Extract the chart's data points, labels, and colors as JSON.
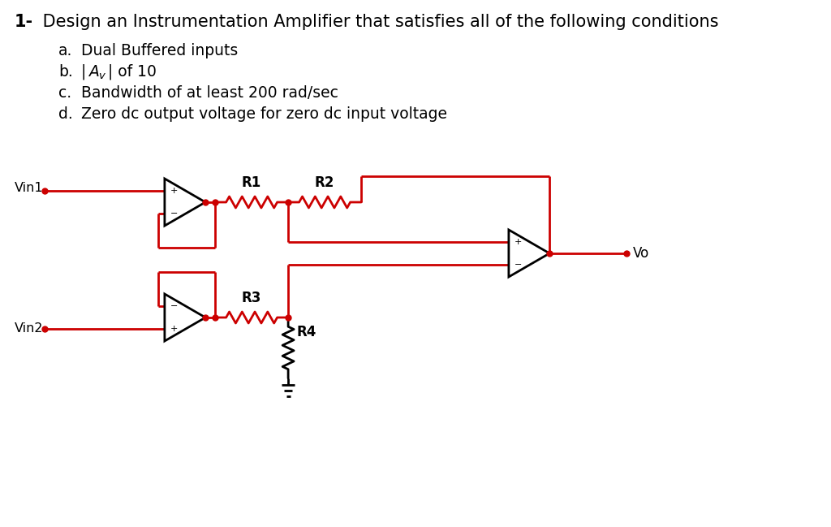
{
  "background_color": "#ffffff",
  "red": "#cc0000",
  "black": "#000000",
  "lw": 2.0,
  "fig_w": 10.24,
  "fig_h": 6.49,
  "title1": "1-",
  "title2": " Design an Instrumentation Amplifier that satisfies all of the following conditions",
  "cond_a": "Dual Buffered inputs",
  "cond_b": "|A",
  "cond_b2": "v",
  "cond_b3": "| of 10",
  "cond_c": "Bandwidth of at least 200 rad/sec",
  "cond_d": "Zero dc output voltage for zero dc input voltage"
}
